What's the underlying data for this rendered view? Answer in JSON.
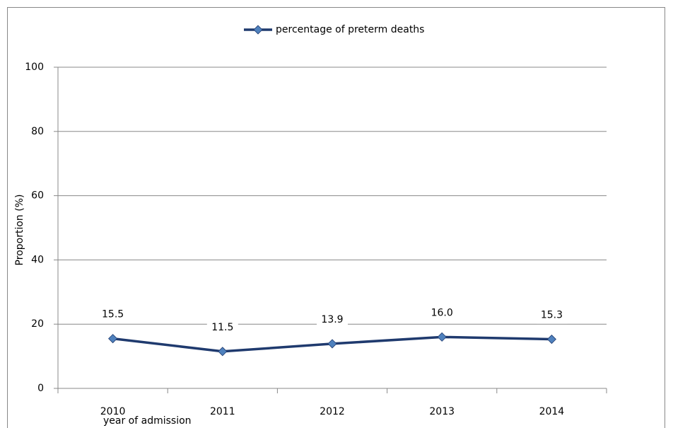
{
  "chart_data": {
    "type": "line",
    "categories": [
      "2010",
      "2011",
      "2012",
      "2013",
      "2014"
    ],
    "series": [
      {
        "name": "percentage of preterm deaths",
        "color": "#1f3a6e",
        "marker_color": "#4f81bd",
        "values": [
          15.5,
          11.5,
          13.9,
          16.0,
          15.3
        ],
        "value_labels": [
          "15.5",
          "11.5",
          "13.9",
          "16.0",
          "15.3"
        ]
      }
    ],
    "ylim": [
      0,
      100
    ],
    "yticks": [
      0,
      20,
      40,
      60,
      80,
      100
    ],
    "grid": true,
    "y_label": "Proportion (%)",
    "x_label": "year of admission",
    "legend": "top"
  }
}
